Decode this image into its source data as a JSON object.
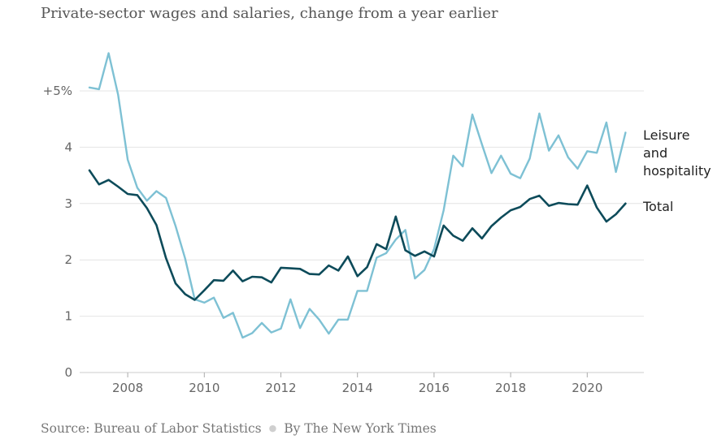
{
  "title": "Private-sector wages and salaries, change from a year earlier",
  "source": {
    "text": "Source: Bureau of Labor Statistics",
    "separator": "●",
    "byline": "By The New York Times"
  },
  "chart_data": {
    "type": "line",
    "title": "Private-sector wages and salaries, change from a year earlier",
    "xlabel": "",
    "ylabel": "",
    "xlim": [
      2006.6,
      2021.3
    ],
    "ylim": [
      0,
      5
    ],
    "y_ticks": [
      {
        "value": 0,
        "label": "0"
      },
      {
        "value": 1,
        "label": "1"
      },
      {
        "value": 2,
        "label": "2"
      },
      {
        "value": 3,
        "label": "3"
      },
      {
        "value": 4,
        "label": "4"
      },
      {
        "value": 5,
        "label": "+5%"
      }
    ],
    "x_ticks": [
      {
        "value": 2008,
        "label": "2008"
      },
      {
        "value": 2010,
        "label": "2010"
      },
      {
        "value": 2012,
        "label": "2012"
      },
      {
        "value": 2014,
        "label": "2014"
      },
      {
        "value": 2016,
        "label": "2016"
      },
      {
        "value": 2018,
        "label": "2018"
      },
      {
        "value": 2020,
        "label": "2020"
      }
    ],
    "grid": true,
    "series": [
      {
        "name": "Leisure and hospitality",
        "label_lines": [
          "Leisure",
          "and",
          "hospitality"
        ],
        "color": "#7ec1d4",
        "x": [
          2007.0,
          2007.25,
          2007.5,
          2007.75,
          2008.0,
          2008.25,
          2008.5,
          2008.75,
          2009.0,
          2009.25,
          2009.5,
          2009.75,
          2010.0,
          2010.25,
          2010.5,
          2010.75,
          2011.0,
          2011.25,
          2011.5,
          2011.75,
          2012.0,
          2012.25,
          2012.5,
          2012.75,
          2013.0,
          2013.25,
          2013.5,
          2013.75,
          2014.0,
          2014.25,
          2014.5,
          2014.75,
          2015.0,
          2015.25,
          2015.5,
          2015.75,
          2016.0,
          2016.25,
          2016.5,
          2016.75,
          2017.0,
          2017.25,
          2017.5,
          2017.75,
          2018.0,
          2018.25,
          2018.5,
          2018.75,
          2019.0,
          2019.25,
          2019.5,
          2019.75,
          2020.0,
          2020.25,
          2020.5,
          2020.75,
          2021.0
        ],
        "values": [
          5.06,
          5.03,
          5.67,
          4.93,
          3.78,
          3.28,
          3.05,
          3.22,
          3.1,
          2.6,
          2.02,
          1.3,
          1.24,
          1.33,
          0.97,
          1.06,
          0.62,
          0.7,
          0.88,
          0.71,
          0.78,
          1.3,
          0.79,
          1.13,
          0.94,
          0.69,
          0.94,
          0.94,
          1.45,
          1.45,
          2.04,
          2.12,
          2.36,
          2.53,
          1.67,
          1.82,
          2.19,
          2.88,
          3.85,
          3.66,
          4.58,
          4.05,
          3.54,
          3.85,
          3.53,
          3.45,
          3.8,
          4.6,
          3.94,
          4.21,
          3.82,
          3.62,
          3.93,
          3.9,
          4.44,
          3.56,
          4.26
        ]
      },
      {
        "name": "Total",
        "label_lines": [
          "Total"
        ],
        "color": "#0d4b5a",
        "x": [
          2007.0,
          2007.25,
          2007.5,
          2007.75,
          2008.0,
          2008.25,
          2008.5,
          2008.75,
          2009.0,
          2009.25,
          2009.5,
          2009.75,
          2010.0,
          2010.25,
          2010.5,
          2010.75,
          2011.0,
          2011.25,
          2011.5,
          2011.75,
          2012.0,
          2012.25,
          2012.5,
          2012.75,
          2013.0,
          2013.25,
          2013.5,
          2013.75,
          2014.0,
          2014.25,
          2014.5,
          2014.75,
          2015.0,
          2015.25,
          2015.5,
          2015.75,
          2016.0,
          2016.25,
          2016.5,
          2016.75,
          2017.0,
          2017.25,
          2017.5,
          2017.75,
          2018.0,
          2018.25,
          2018.5,
          2018.75,
          2019.0,
          2019.25,
          2019.5,
          2019.75,
          2020.0,
          2020.25,
          2020.5,
          2020.75,
          2021.0
        ],
        "values": [
          3.59,
          3.34,
          3.42,
          3.3,
          3.17,
          3.15,
          2.92,
          2.62,
          2.03,
          1.58,
          1.39,
          1.29,
          1.46,
          1.64,
          1.63,
          1.81,
          1.62,
          1.7,
          1.69,
          1.6,
          1.86,
          1.85,
          1.84,
          1.75,
          1.74,
          1.9,
          1.81,
          2.06,
          1.71,
          1.87,
          2.28,
          2.19,
          2.77,
          2.17,
          2.07,
          2.15,
          2.06,
          2.61,
          2.43,
          2.34,
          2.56,
          2.38,
          2.6,
          2.75,
          2.88,
          2.94,
          3.08,
          3.14,
          2.96,
          3.01,
          2.99,
          2.98,
          3.32,
          2.93,
          2.68,
          2.81,
          3.0
        ]
      }
    ]
  }
}
